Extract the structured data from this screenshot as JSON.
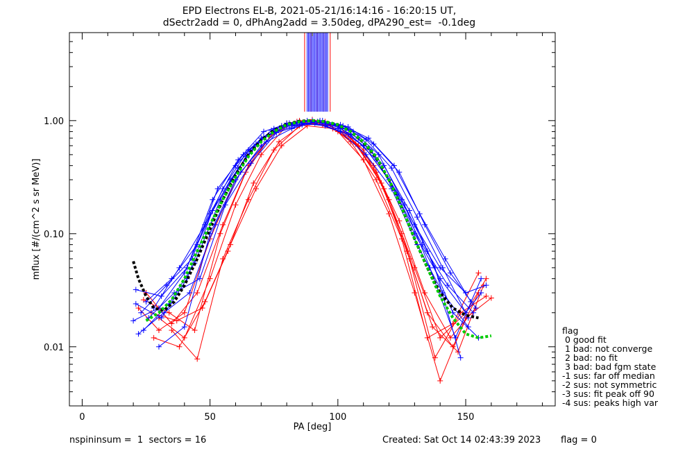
{
  "title_line1": "EPD Electrons EL-B, 2021-05-21/16:14:16 - 16:20:15 UT,",
  "title_line2": "dSectr2add = 0, dPhAng2add = 3.50deg, dPA290_est=  -0.1deg",
  "footer": {
    "left": "nspininsum =  1  sectors = 16",
    "created": "Created: Sat Oct 14 02:43:39 2023",
    "flag": "flag = 0"
  },
  "legend": {
    "title": "flag",
    "entries": [
      " 0 good fit",
      " 1 bad: not converge",
      " 2 bad: no fit",
      " 3 bad: bad fgm state",
      "-1 sus: far off median",
      "-2 sus: not symmetric",
      "-3 sus: fit peak off 90",
      "-4 sus: peaks high var"
    ]
  },
  "chart_data": {
    "type": "line",
    "xlabel": "PA [deg]",
    "ylabel": "mflux [#/(cm^2 s sr MeV)]",
    "xlim": [
      -5,
      185
    ],
    "ylim": [
      0.003,
      6.0
    ],
    "yscale": "log",
    "xticks": [
      0,
      50,
      100,
      150
    ],
    "xtick_labels": [
      "0",
      "50",
      "100",
      "150"
    ],
    "yticks": [
      0.01,
      0.1,
      1.0
    ],
    "ytick_labels": [
      "0.01",
      "0.10",
      "1.00"
    ],
    "colors": {
      "red": "#ff0000",
      "blue": "#0000ff",
      "green": "#00cc00",
      "black": "#000000"
    },
    "red_curves": [
      {
        "x": [
          22,
          30,
          40,
          50,
          60,
          70,
          80,
          90,
          100,
          110,
          120,
          130,
          140,
          150,
          158
        ],
        "y": [
          0.022,
          0.014,
          0.02,
          0.09,
          0.3,
          0.6,
          0.95,
          1.02,
          0.9,
          0.55,
          0.2,
          0.05,
          0.012,
          0.02,
          0.04
        ]
      },
      {
        "x": [
          25,
          35,
          45,
          55,
          65,
          75,
          85,
          95,
          105,
          115,
          125,
          135,
          145,
          155
        ],
        "y": [
          0.03,
          0.016,
          0.03,
          0.12,
          0.4,
          0.8,
          1.0,
          0.95,
          0.7,
          0.35,
          0.1,
          0.02,
          0.01,
          0.03
        ]
      },
      {
        "x": [
          28,
          38,
          48,
          58,
          68,
          78,
          88,
          98,
          108,
          118,
          128,
          138,
          148,
          158
        ],
        "y": [
          0.012,
          0.01,
          0.025,
          0.08,
          0.25,
          0.6,
          0.9,
          0.85,
          0.6,
          0.25,
          0.06,
          0.008,
          0.02,
          0.028
        ]
      },
      {
        "x": [
          30,
          40,
          50,
          60,
          70,
          80,
          90,
          100,
          110,
          120,
          130,
          140,
          150,
          160
        ],
        "y": [
          0.018,
          0.012,
          0.04,
          0.18,
          0.5,
          0.9,
          1.0,
          0.8,
          0.45,
          0.15,
          0.03,
          0.005,
          0.018,
          0.027
        ]
      },
      {
        "x": [
          35,
          45,
          55,
          65,
          75,
          85,
          95,
          105,
          115,
          125,
          135,
          145,
          155
        ],
        "y": [
          0.014,
          0.0078,
          0.06,
          0.2,
          0.55,
          0.9,
          0.98,
          0.65,
          0.3,
          0.09,
          0.012,
          0.016,
          0.045
        ]
      },
      {
        "x": [
          24,
          34,
          44,
          54,
          64,
          74,
          84,
          94,
          104,
          114,
          124,
          134,
          144,
          154
        ],
        "y": [
          0.026,
          0.02,
          0.014,
          0.1,
          0.35,
          0.75,
          0.98,
          0.92,
          0.75,
          0.4,
          0.13,
          0.03,
          0.012,
          0.022
        ]
      },
      {
        "x": [
          27,
          37,
          47,
          57,
          67,
          77,
          87,
          97,
          107,
          117,
          127,
          137,
          147,
          157
        ],
        "y": [
          0.02,
          0.017,
          0.022,
          0.07,
          0.28,
          0.65,
          0.95,
          0.9,
          0.62,
          0.28,
          0.07,
          0.015,
          0.009,
          0.035
        ]
      }
    ],
    "blue_curves": [
      {
        "x": [
          20,
          30,
          40,
          50,
          60,
          70,
          80,
          90,
          100,
          110,
          120,
          130,
          140,
          150,
          156
        ],
        "y": [
          0.017,
          0.022,
          0.045,
          0.15,
          0.4,
          0.7,
          0.9,
          1.0,
          0.85,
          0.6,
          0.3,
          0.1,
          0.04,
          0.02,
          0.03
        ]
      },
      {
        "x": [
          21,
          31,
          41,
          51,
          61,
          71,
          81,
          91,
          101,
          111,
          121,
          131,
          141,
          151
        ],
        "y": [
          0.032,
          0.028,
          0.05,
          0.2,
          0.45,
          0.8,
          0.95,
          0.95,
          0.8,
          0.5,
          0.25,
          0.08,
          0.03,
          0.015
        ]
      },
      {
        "x": [
          22,
          32,
          42,
          52,
          62,
          72,
          82,
          92,
          102,
          112,
          122,
          132,
          142,
          152
        ],
        "y": [
          0.013,
          0.02,
          0.03,
          0.12,
          0.35,
          0.65,
          0.85,
          0.98,
          0.9,
          0.7,
          0.4,
          0.15,
          0.06,
          0.025
        ]
      },
      {
        "x": [
          25,
          35,
          45,
          55,
          65,
          75,
          85,
          95,
          105,
          115,
          125,
          135,
          145,
          155
        ],
        "y": [
          0.025,
          0.04,
          0.08,
          0.25,
          0.55,
          0.85,
          0.95,
          0.9,
          0.75,
          0.45,
          0.2,
          0.07,
          0.02,
          0.012
        ]
      },
      {
        "x": [
          23,
          33,
          43,
          53,
          63,
          73,
          83,
          93,
          103,
          113,
          123,
          133,
          143,
          153
        ],
        "y": [
          0.02,
          0.035,
          0.06,
          0.25,
          0.5,
          0.75,
          0.9,
          1.0,
          0.85,
          0.55,
          0.22,
          0.08,
          0.035,
          0.02
        ]
      },
      {
        "x": [
          26,
          36,
          46,
          56,
          66,
          76,
          86,
          96,
          106,
          116,
          126,
          136,
          146,
          156
        ],
        "y": [
          0.018,
          0.03,
          0.04,
          0.18,
          0.42,
          0.78,
          0.92,
          0.93,
          0.8,
          0.5,
          0.18,
          0.05,
          0.012,
          0.04
        ]
      },
      {
        "x": [
          30,
          40,
          50,
          60,
          70,
          80,
          90,
          100,
          110,
          120,
          130,
          140,
          150,
          158
        ],
        "y": [
          0.01,
          0.015,
          0.1,
          0.3,
          0.6,
          0.95,
          1.0,
          0.9,
          0.6,
          0.3,
          0.12,
          0.05,
          0.03,
          0.035
        ]
      },
      {
        "x": [
          24,
          34,
          44,
          54,
          64,
          74,
          84,
          94,
          104,
          114,
          124,
          134,
          144,
          154
        ],
        "y": [
          0.014,
          0.024,
          0.055,
          0.2,
          0.48,
          0.82,
          0.96,
          1.0,
          0.88,
          0.62,
          0.35,
          0.12,
          0.045,
          0.022
        ]
      },
      {
        "x": [
          21,
          31,
          41,
          51,
          61,
          71,
          81,
          91,
          101,
          111,
          121,
          131,
          141,
          151
        ],
        "y": [
          0.024,
          0.018,
          0.04,
          0.16,
          0.38,
          0.72,
          0.9,
          0.97,
          0.92,
          0.68,
          0.38,
          0.14,
          0.05,
          0.018
        ]
      },
      {
        "x": [
          28,
          38,
          48,
          58,
          68,
          78,
          88,
          98,
          108,
          118,
          128,
          138,
          148
        ],
        "y": [
          0.022,
          0.05,
          0.12,
          0.3,
          0.62,
          0.9,
          1.0,
          0.92,
          0.7,
          0.4,
          0.16,
          0.05,
          0.008
        ]
      }
    ],
    "blue_bar": {
      "x_range": [
        88,
        96
      ],
      "y_range": [
        1.2,
        6.0
      ]
    },
    "red_bar": {
      "x_range": [
        87,
        97
      ],
      "y_range": [
        1.2,
        6.0
      ]
    },
    "fit_green": {
      "x": [
        25,
        30,
        35,
        40,
        45,
        50,
        55,
        60,
        65,
        70,
        75,
        80,
        85,
        90,
        95,
        100,
        105,
        110,
        115,
        120,
        125,
        130,
        135,
        140,
        145,
        150,
        155,
        160
      ],
      "y": [
        0.017,
        0.02,
        0.026,
        0.04,
        0.07,
        0.12,
        0.2,
        0.32,
        0.48,
        0.65,
        0.8,
        0.92,
        0.98,
        1.0,
        0.98,
        0.92,
        0.8,
        0.65,
        0.48,
        0.3,
        0.17,
        0.09,
        0.05,
        0.028,
        0.018,
        0.013,
        0.012,
        0.0125
      ]
    },
    "fit_black": {
      "x": [
        20,
        22,
        25,
        28,
        32,
        36,
        40,
        45,
        50,
        55,
        60,
        65,
        70,
        75,
        80,
        85,
        90,
        95,
        100,
        105,
        110,
        115,
        120,
        125,
        130,
        135,
        140,
        145,
        150,
        155
      ],
      "y": [
        0.057,
        0.04,
        0.028,
        0.022,
        0.021,
        0.025,
        0.035,
        0.06,
        0.11,
        0.2,
        0.33,
        0.5,
        0.67,
        0.82,
        0.93,
        0.99,
        1.0,
        0.98,
        0.92,
        0.8,
        0.64,
        0.47,
        0.3,
        0.17,
        0.09,
        0.05,
        0.03,
        0.022,
        0.019,
        0.018
      ]
    }
  }
}
